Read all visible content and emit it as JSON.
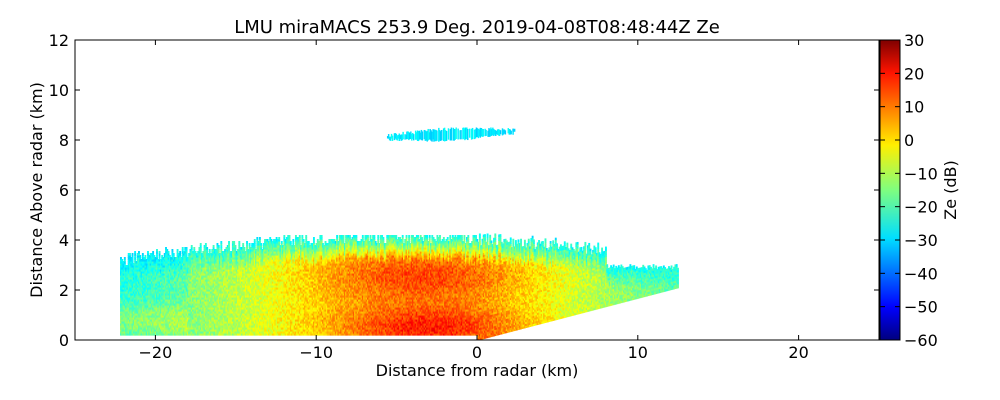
{
  "chart_data": {
    "type": "heatmap",
    "title": "LMU miraMACS 253.9 Deg. 2019-04-08T08:48:44Z  Ze",
    "xlabel": "Distance from radar (km)",
    "ylabel": "Distance Above radar  (km)",
    "xlim": [
      -25,
      25
    ],
    "ylim": [
      0,
      12
    ],
    "xticks": [
      -20,
      -10,
      0,
      10,
      20
    ],
    "xtick_labels": [
      "−20",
      "−10",
      "0",
      "10",
      "20"
    ],
    "yticks": [
      0,
      2,
      4,
      6,
      8,
      10,
      12
    ],
    "ytick_labels": [
      "0",
      "2",
      "4",
      "6",
      "8",
      "10",
      "12"
    ],
    "colorbar": {
      "label": "Ze (dB)",
      "range": [
        -60,
        30
      ],
      "colormap": "jet",
      "ticks": [
        30,
        20,
        10,
        0,
        -10,
        -20,
        -30,
        -40,
        -50,
        -60
      ],
      "tick_labels": [
        "30",
        "20",
        "10",
        "0",
        "−10",
        "−20",
        "−30",
        "−40",
        "−50",
        "−60"
      ]
    },
    "regions": [
      {
        "name": "upper-cloud-layer",
        "x_range_km": [
          -5.6,
          2.2
        ],
        "z_range_km": [
          7.8,
          8.5
        ],
        "ze_db": -28
      },
      {
        "name": "lower-cloud-layer",
        "x_range_km": [
          -22.2,
          12.5
        ],
        "z_range_km": [
          0.2,
          4.2
        ],
        "ze_db_min": -25,
        "ze_db_max": 25,
        "ze_db_core": 20
      }
    ]
  }
}
